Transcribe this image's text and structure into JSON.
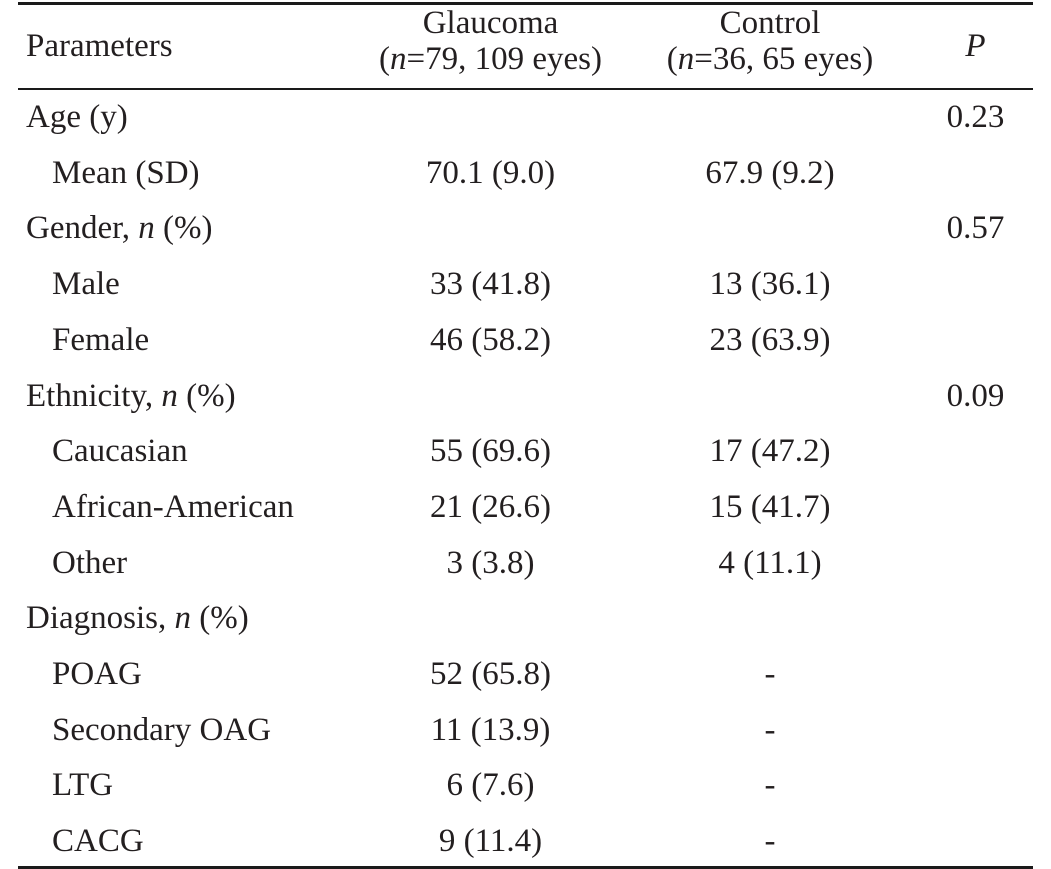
{
  "header": {
    "col_parameters": "Parameters",
    "glaucoma_line1": "Glaucoma",
    "glaucoma_n_italic": "n",
    "glaucoma_line2_rest": "=79, 109 eyes)",
    "control_line1": "Control",
    "control_n_italic": "n",
    "control_line2_rest": "=36, 65 eyes)",
    "p_label": "P"
  },
  "rows": [
    {
      "label": "Age (y)",
      "italic": "",
      "suffix": "",
      "glaucoma": "",
      "control": "",
      "p": "0.23"
    },
    {
      "label": "Mean (SD)",
      "italic": "",
      "suffix": "",
      "glaucoma": "70.1 (9.0)",
      "control": "67.9 (9.2)",
      "p": ""
    },
    {
      "label": "Gender, ",
      "italic": "n",
      "suffix": " (%)",
      "glaucoma": "",
      "control": "",
      "p": "0.57"
    },
    {
      "label": "Male",
      "italic": "",
      "suffix": "",
      "glaucoma": "33 (41.8)",
      "control": "13 (36.1)",
      "p": ""
    },
    {
      "label": "Female",
      "italic": "",
      "suffix": "",
      "glaucoma": "46 (58.2)",
      "control": "23 (63.9)",
      "p": ""
    },
    {
      "label": "Ethnicity, ",
      "italic": "n",
      "suffix": " (%)",
      "glaucoma": "",
      "control": "",
      "p": "0.09"
    },
    {
      "label": "Caucasian",
      "italic": "",
      "suffix": "",
      "glaucoma": "55 (69.6)",
      "control": "17 (47.2)",
      "p": ""
    },
    {
      "label": "African-American",
      "italic": "",
      "suffix": "",
      "glaucoma": "21 (26.6)",
      "control": "15 (41.7)",
      "p": ""
    },
    {
      "label": "Other",
      "italic": "",
      "suffix": "",
      "glaucoma": "3 (3.8)",
      "control": "4 (11.1)",
      "p": ""
    },
    {
      "label": "Diagnosis, ",
      "italic": "n",
      "suffix": " (%)",
      "glaucoma": "",
      "control": "",
      "p": ""
    },
    {
      "label": "POAG",
      "italic": "",
      "suffix": "",
      "glaucoma": "52 (65.8)",
      "control": "-",
      "p": ""
    },
    {
      "label": "Secondary OAG",
      "italic": "",
      "suffix": "",
      "glaucoma": "11 (13.9)",
      "control": "-",
      "p": ""
    },
    {
      "label": "LTG",
      "italic": "",
      "suffix": "",
      "glaucoma": "6 (7.6)",
      "control": "-",
      "p": ""
    },
    {
      "label": "CACG",
      "italic": "",
      "suffix": "",
      "glaucoma": "9 (11.4)",
      "control": "-",
      "p": ""
    }
  ]
}
